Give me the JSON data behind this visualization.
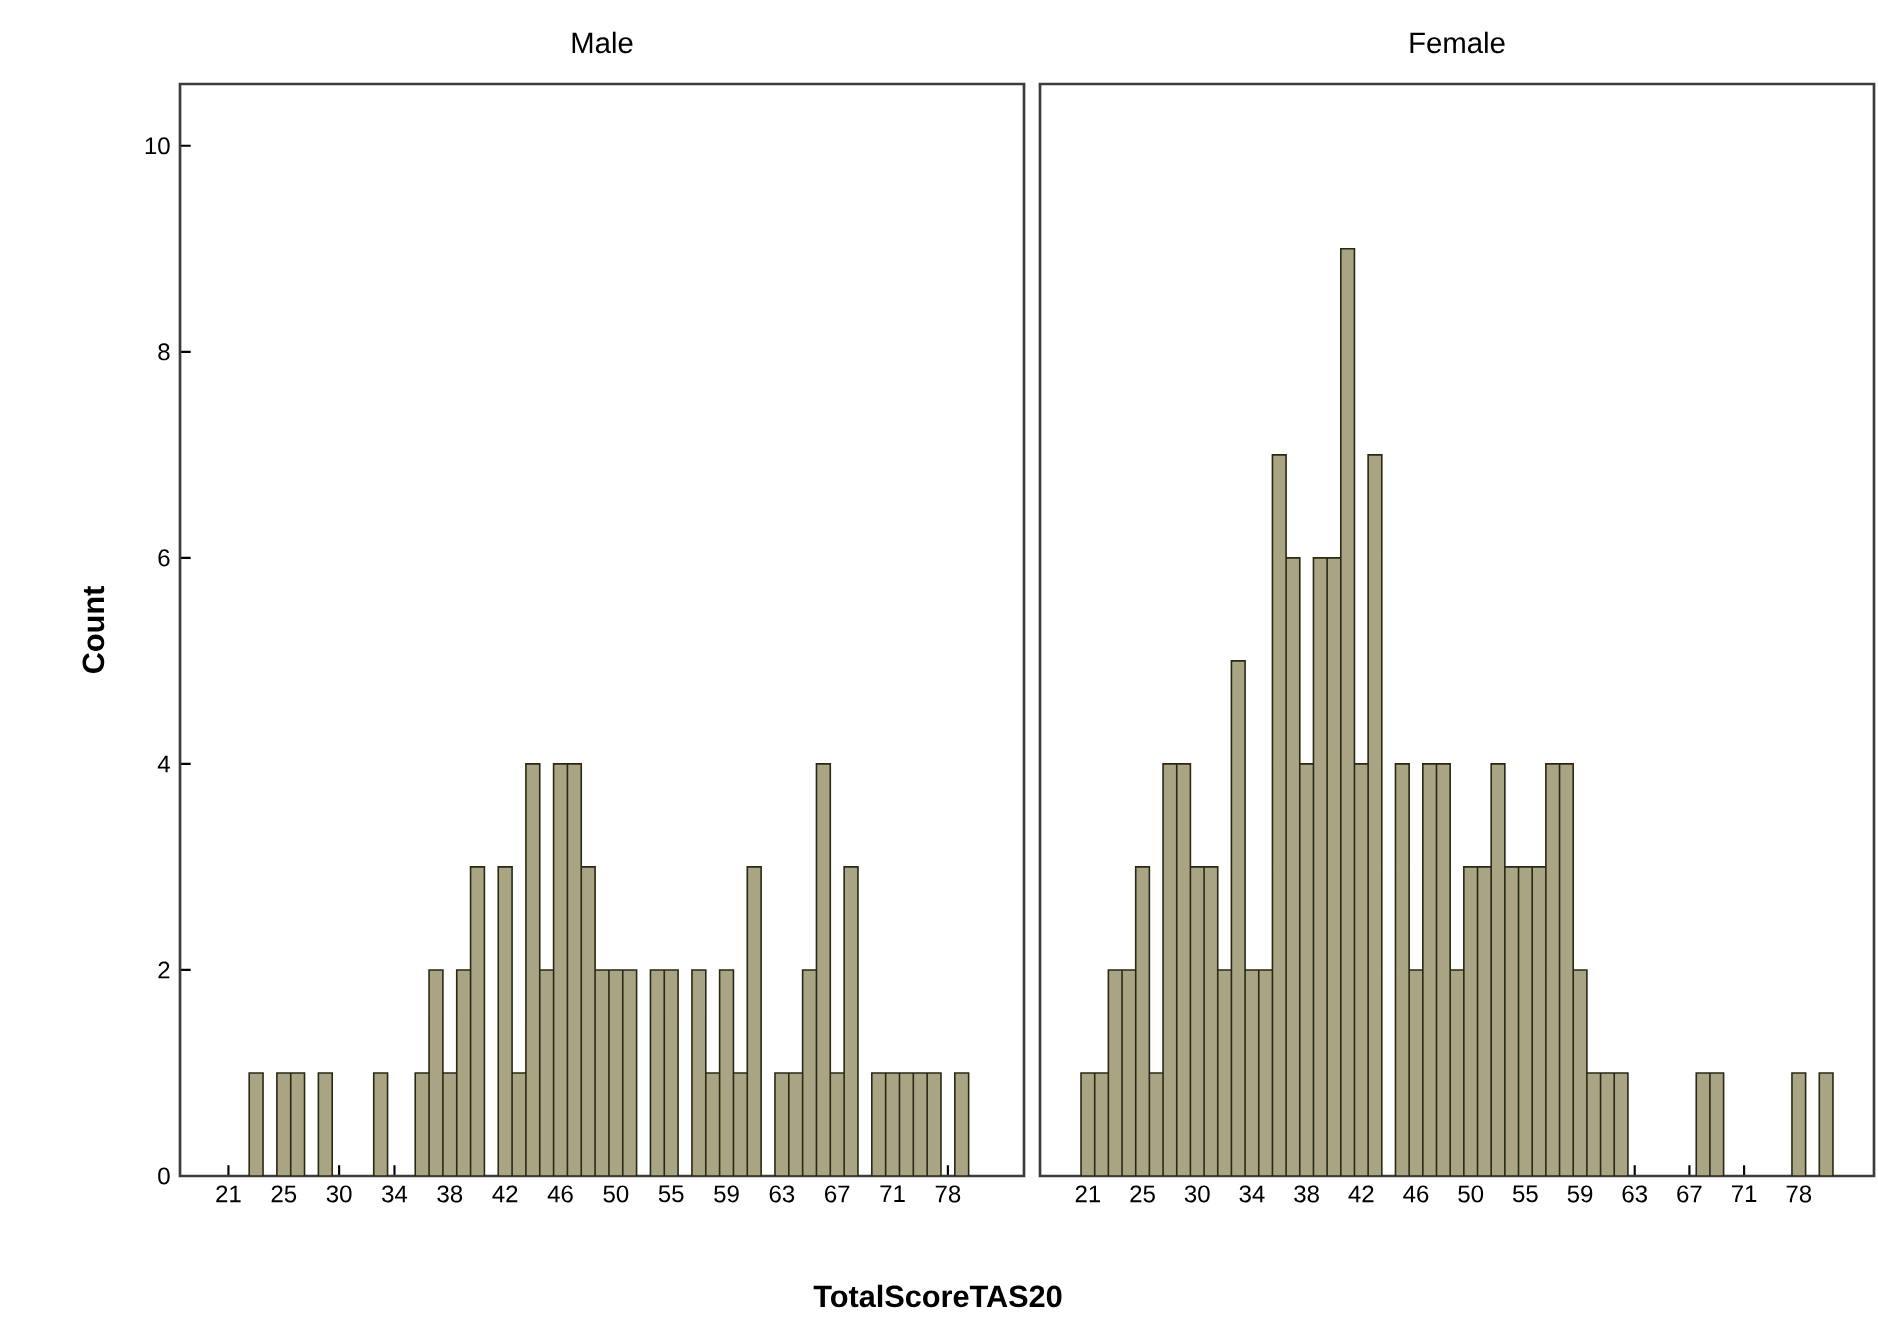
{
  "chart_data": [
    {
      "type": "bar",
      "title": "Male",
      "ylabel": "Count",
      "xlabel": "TotalScoreTAS20",
      "color": "#a8a484",
      "categories": [
        "21",
        null,
        null,
        null,
        "25",
        null,
        null,
        null,
        "30",
        null,
        null,
        null,
        "34",
        null,
        null,
        null,
        "38",
        null,
        null,
        null,
        "42",
        null,
        null,
        null,
        "46",
        null,
        null,
        null,
        "50",
        null,
        null,
        null,
        "55",
        null,
        null,
        null,
        "59",
        null,
        null,
        null,
        "63",
        null,
        null,
        null,
        "67",
        null,
        null,
        null,
        "71",
        null,
        null,
        null,
        "78",
        null,
        null
      ],
      "values": [
        0,
        0,
        1,
        0,
        1,
        1,
        0,
        1,
        0,
        0,
        0,
        1,
        0,
        0,
        1,
        2,
        1,
        2,
        3,
        0,
        3,
        1,
        4,
        2,
        4,
        4,
        3,
        2,
        2,
        2,
        0,
        2,
        2,
        0,
        2,
        1,
        2,
        1,
        3,
        0,
        1,
        1,
        2,
        4,
        1,
        3,
        0,
        1,
        1,
        1,
        1,
        1,
        0,
        1,
        0
      ],
      "ylim": [
        0,
        10.6
      ],
      "yticks": [
        0,
        2,
        4,
        6,
        8,
        10
      ]
    },
    {
      "type": "bar",
      "title": "Female",
      "color": "#a8a484",
      "tick_labels": "x",
      "categories": [
        "21",
        null,
        null,
        null,
        "25",
        null,
        null,
        null,
        "30",
        null,
        null,
        null,
        "34",
        null,
        null,
        null,
        "38",
        null,
        null,
        null,
        "42",
        null,
        null,
        null,
        "46",
        null,
        null,
        null,
        "50",
        null,
        null,
        null,
        "55",
        null,
        null,
        null,
        "59",
        null,
        null,
        null,
        "63",
        null,
        null,
        null,
        "67",
        null,
        null,
        null,
        "71",
        null,
        null,
        null,
        "78",
        null,
        null
      ],
      "values": [
        1,
        1,
        2,
        2,
        3,
        1,
        4,
        4,
        3,
        3,
        2,
        5,
        2,
        2,
        7,
        6,
        4,
        6,
        6,
        9,
        4,
        7,
        0,
        4,
        2,
        4,
        4,
        2,
        3,
        3,
        4,
        3,
        3,
        3,
        4,
        4,
        2,
        1,
        1,
        1,
        0,
        0,
        0,
        0,
        0,
        1,
        1,
        0,
        0,
        0,
        0,
        0,
        1,
        0,
        1
      ],
      "ylim": [
        0,
        10.6
      ],
      "yticks": [
        0,
        2,
        4,
        6,
        8,
        10
      ]
    }
  ]
}
